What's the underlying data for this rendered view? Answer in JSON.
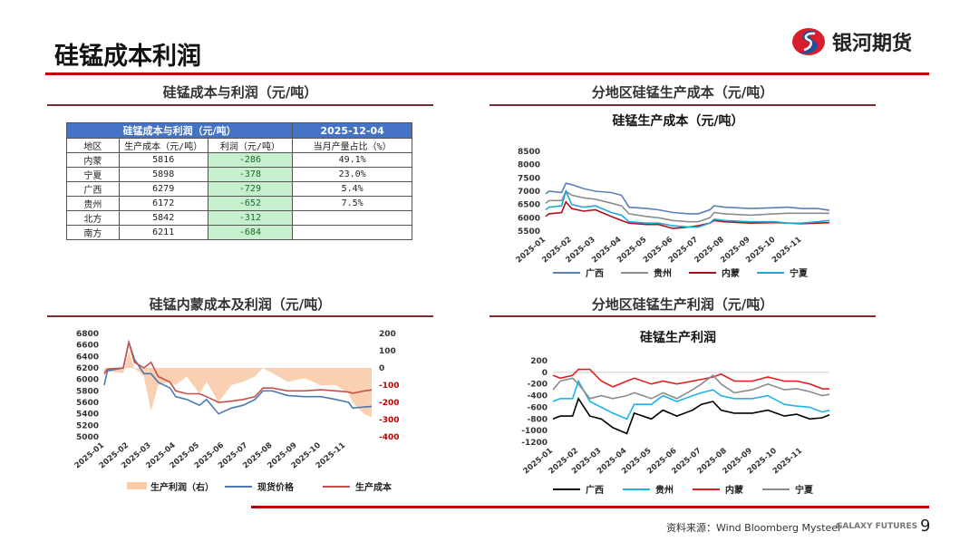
{
  "header": {
    "title": "硅锰成本利润",
    "logo_text": "银河期货"
  },
  "sections": {
    "table": "硅锰成本与利润（元/吨）",
    "cost": "分地区硅锰生产成本（元/吨）",
    "neimeng": "硅锰内蒙成本及利润（元/吨）",
    "profit": "分地区硅锰生产利润（元/吨）"
  },
  "table": {
    "title": "硅锰成本与利润（元/吨）",
    "date": "2025-12-04",
    "columns": [
      "地区",
      "生产成本（元/吨）",
      "利润（元/吨）",
      "当月产量占比（%）"
    ],
    "rows": [
      [
        "内蒙",
        "5816",
        "-286",
        "49.1%"
      ],
      [
        "宁夏",
        "5898",
        "-378",
        "23.0%"
      ],
      [
        "广西",
        "6279",
        "-729",
        "5.4%"
      ],
      [
        "贵州",
        "6172",
        "-652",
        "7.5%"
      ],
      [
        "北方",
        "5842",
        "-312",
        ""
      ],
      [
        "南方",
        "6211",
        "-684",
        ""
      ]
    ]
  },
  "footer": {
    "source": "资料来源：Wind Bloomberg Mysteel",
    "brand": "GALAXY FUTURES",
    "page": "9"
  },
  "chart_data": [
    {
      "type": "line",
      "title": "硅锰生产成本（元/吨）",
      "ylim": [
        5500,
        8500
      ],
      "yticks": [
        5500,
        6000,
        6500,
        7000,
        7500,
        8000,
        8500
      ],
      "xticks": [
        "2025-01",
        "2025-02",
        "2025-03",
        "2025-04",
        "2025-05",
        "2025-06",
        "2025-07",
        "2025-08",
        "2025-09",
        "2025-10",
        "2025-11"
      ],
      "x": [
        "2025-01-01",
        "2025-01-05",
        "2025-01-20",
        "2025-01-25",
        "2025-02-01",
        "2025-02-15",
        "2025-03-01",
        "2025-03-20",
        "2025-04-01",
        "2025-04-10",
        "2025-05-01",
        "2025-05-15",
        "2025-06-01",
        "2025-06-20",
        "2025-07-01",
        "2025-07-15",
        "2025-07-20",
        "2025-08-01",
        "2025-09-01",
        "2025-10-01",
        "2025-10-15",
        "2025-11-01",
        "2025-11-20",
        "2025-12-04"
      ],
      "series": [
        {
          "name": "广西",
          "color": "#5b7fb8",
          "values": [
            6900,
            7000,
            6950,
            7300,
            7250,
            7100,
            7000,
            6950,
            6850,
            6400,
            6350,
            6300,
            6200,
            6150,
            6150,
            6300,
            6450,
            6400,
            6350,
            6380,
            6400,
            6350,
            6350,
            6279
          ]
        },
        {
          "name": "贵州",
          "color": "#8c8c8c",
          "values": [
            6550,
            6650,
            6650,
            7000,
            6850,
            6750,
            6700,
            6550,
            6450,
            6150,
            6050,
            6000,
            5900,
            5850,
            5850,
            6000,
            6200,
            6150,
            6100,
            6150,
            6170,
            6170,
            6170,
            6172
          ]
        },
        {
          "name": "内蒙",
          "color": "#b0101a",
          "values": [
            6050,
            6150,
            6200,
            6600,
            6350,
            6250,
            6300,
            6050,
            5900,
            5800,
            5750,
            5750,
            5600,
            5650,
            5700,
            5800,
            5900,
            5850,
            5800,
            5820,
            5800,
            5780,
            5800,
            5816
          ]
        },
        {
          "name": "宁夏",
          "color": "#1fa8d8",
          "values": [
            6300,
            6400,
            6450,
            7000,
            6500,
            6400,
            6450,
            6200,
            6100,
            5850,
            5800,
            5800,
            5700,
            5650,
            5650,
            5800,
            5950,
            5900,
            5850,
            5850,
            5800,
            5800,
            5850,
            5898
          ]
        }
      ]
    },
    {
      "type": "line+area",
      "title": "",
      "ylim": [
        5000,
        6800
      ],
      "yticks": [
        5000,
        5200,
        5400,
        5600,
        5800,
        6000,
        6200,
        6400,
        6600,
        6800
      ],
      "y2lim": [
        -400,
        200
      ],
      "y2ticks": [
        -400,
        -300,
        -200,
        -100,
        0,
        100,
        200
      ],
      "xticks": [
        "2025-01",
        "2025-02",
        "2025-03",
        "2025-04",
        "2025-05",
        "2025-06",
        "2025-07",
        "2025-08",
        "2025-09",
        "2025-10",
        "2025-11"
      ],
      "x": [
        "2025-01-01",
        "2025-01-05",
        "2025-01-25",
        "2025-02-01",
        "2025-02-08",
        "2025-02-20",
        "2025-03-01",
        "2025-03-10",
        "2025-03-25",
        "2025-04-01",
        "2025-04-15",
        "2025-05-01",
        "2025-05-10",
        "2025-05-25",
        "2025-06-10",
        "2025-06-25",
        "2025-07-10",
        "2025-07-20",
        "2025-08-01",
        "2025-08-20",
        "2025-09-10",
        "2025-10-01",
        "2025-10-20",
        "2025-11-05",
        "2025-11-10",
        "2025-11-25",
        "2025-12-04"
      ],
      "series": [
        {
          "name": "生产利润（右）",
          "color": "#f8cba8",
          "axis": "right",
          "kind": "area",
          "values": [
            -50,
            -20,
            -30,
            100,
            0,
            -50,
            -250,
            -100,
            -80,
            -100,
            -50,
            -150,
            -80,
            -200,
            -100,
            -80,
            -50,
            0,
            -30,
            -80,
            -60,
            -100,
            -100,
            -150,
            -200,
            -270,
            -286
          ]
        },
        {
          "name": "现货价格",
          "color": "#4a7ab0",
          "axis": "left",
          "kind": "line",
          "values": [
            5900,
            6150,
            6200,
            6650,
            6350,
            6100,
            6100,
            5950,
            5850,
            5700,
            5650,
            5550,
            5650,
            5400,
            5500,
            5550,
            5650,
            5800,
            5800,
            5720,
            5700,
            5700,
            5650,
            5600,
            5500,
            5520,
            5530
          ]
        },
        {
          "name": "生产成本",
          "color": "#c8504a",
          "axis": "left",
          "kind": "line",
          "values": [
            6100,
            6180,
            6200,
            6650,
            6300,
            6200,
            6300,
            6050,
            5950,
            5800,
            5750,
            5750,
            5700,
            5600,
            5620,
            5650,
            5700,
            5850,
            5850,
            5800,
            5800,
            5820,
            5800,
            5780,
            5760,
            5800,
            5816
          ]
        }
      ]
    },
    {
      "type": "line",
      "title": "硅锰生产利润",
      "ylim": [
        -1200,
        200
      ],
      "yticks": [
        -1200,
        -1000,
        -800,
        -600,
        -400,
        -200,
        0,
        200
      ],
      "xticks": [
        "2025-01",
        "2025-02",
        "2025-03",
        "2025-04",
        "2025-05",
        "2025-06",
        "2025-07",
        "2025-08",
        "2025-09",
        "2025-10",
        "2025-11"
      ],
      "x": [
        "2025-01-01",
        "2025-01-10",
        "2025-01-25",
        "2025-02-01",
        "2025-02-15",
        "2025-03-01",
        "2025-03-15",
        "2025-04-01",
        "2025-04-10",
        "2025-05-01",
        "2025-05-15",
        "2025-06-01",
        "2025-06-20",
        "2025-07-01",
        "2025-07-15",
        "2025-07-25",
        "2025-08-10",
        "2025-09-01",
        "2025-09-20",
        "2025-10-10",
        "2025-10-25",
        "2025-11-10",
        "2025-11-25",
        "2025-12-04"
      ],
      "series": [
        {
          "name": "广西",
          "color": "#000000",
          "values": [
            -800,
            -750,
            -750,
            -450,
            -750,
            -800,
            -950,
            -1050,
            -700,
            -800,
            -650,
            -750,
            -650,
            -550,
            -500,
            -650,
            -700,
            -700,
            -650,
            -750,
            -720,
            -800,
            -780,
            -729
          ]
        },
        {
          "name": "贵州",
          "color": "#1fb4e8",
          "values": [
            -500,
            -450,
            -450,
            -150,
            -500,
            -600,
            -700,
            -800,
            -550,
            -550,
            -400,
            -500,
            -400,
            -350,
            -300,
            -400,
            -450,
            -450,
            -400,
            -550,
            -580,
            -600,
            -680,
            -652
          ]
        },
        {
          "name": "内蒙",
          "color": "#e02020",
          "values": [
            -50,
            -100,
            -50,
            50,
            50,
            -150,
            -250,
            -150,
            -100,
            -200,
            -150,
            -200,
            -150,
            -120,
            -80,
            -30,
            -150,
            -150,
            -80,
            -150,
            -150,
            -200,
            -280,
            -286
          ]
        },
        {
          "name": "宁夏",
          "color": "#8c8c8c",
          "values": [
            -300,
            -150,
            -100,
            -200,
            -450,
            -400,
            -450,
            -400,
            -350,
            -450,
            -350,
            -450,
            -300,
            -200,
            -50,
            -200,
            -350,
            -300,
            -200,
            -300,
            -280,
            -330,
            -400,
            -378
          ]
        }
      ]
    }
  ]
}
